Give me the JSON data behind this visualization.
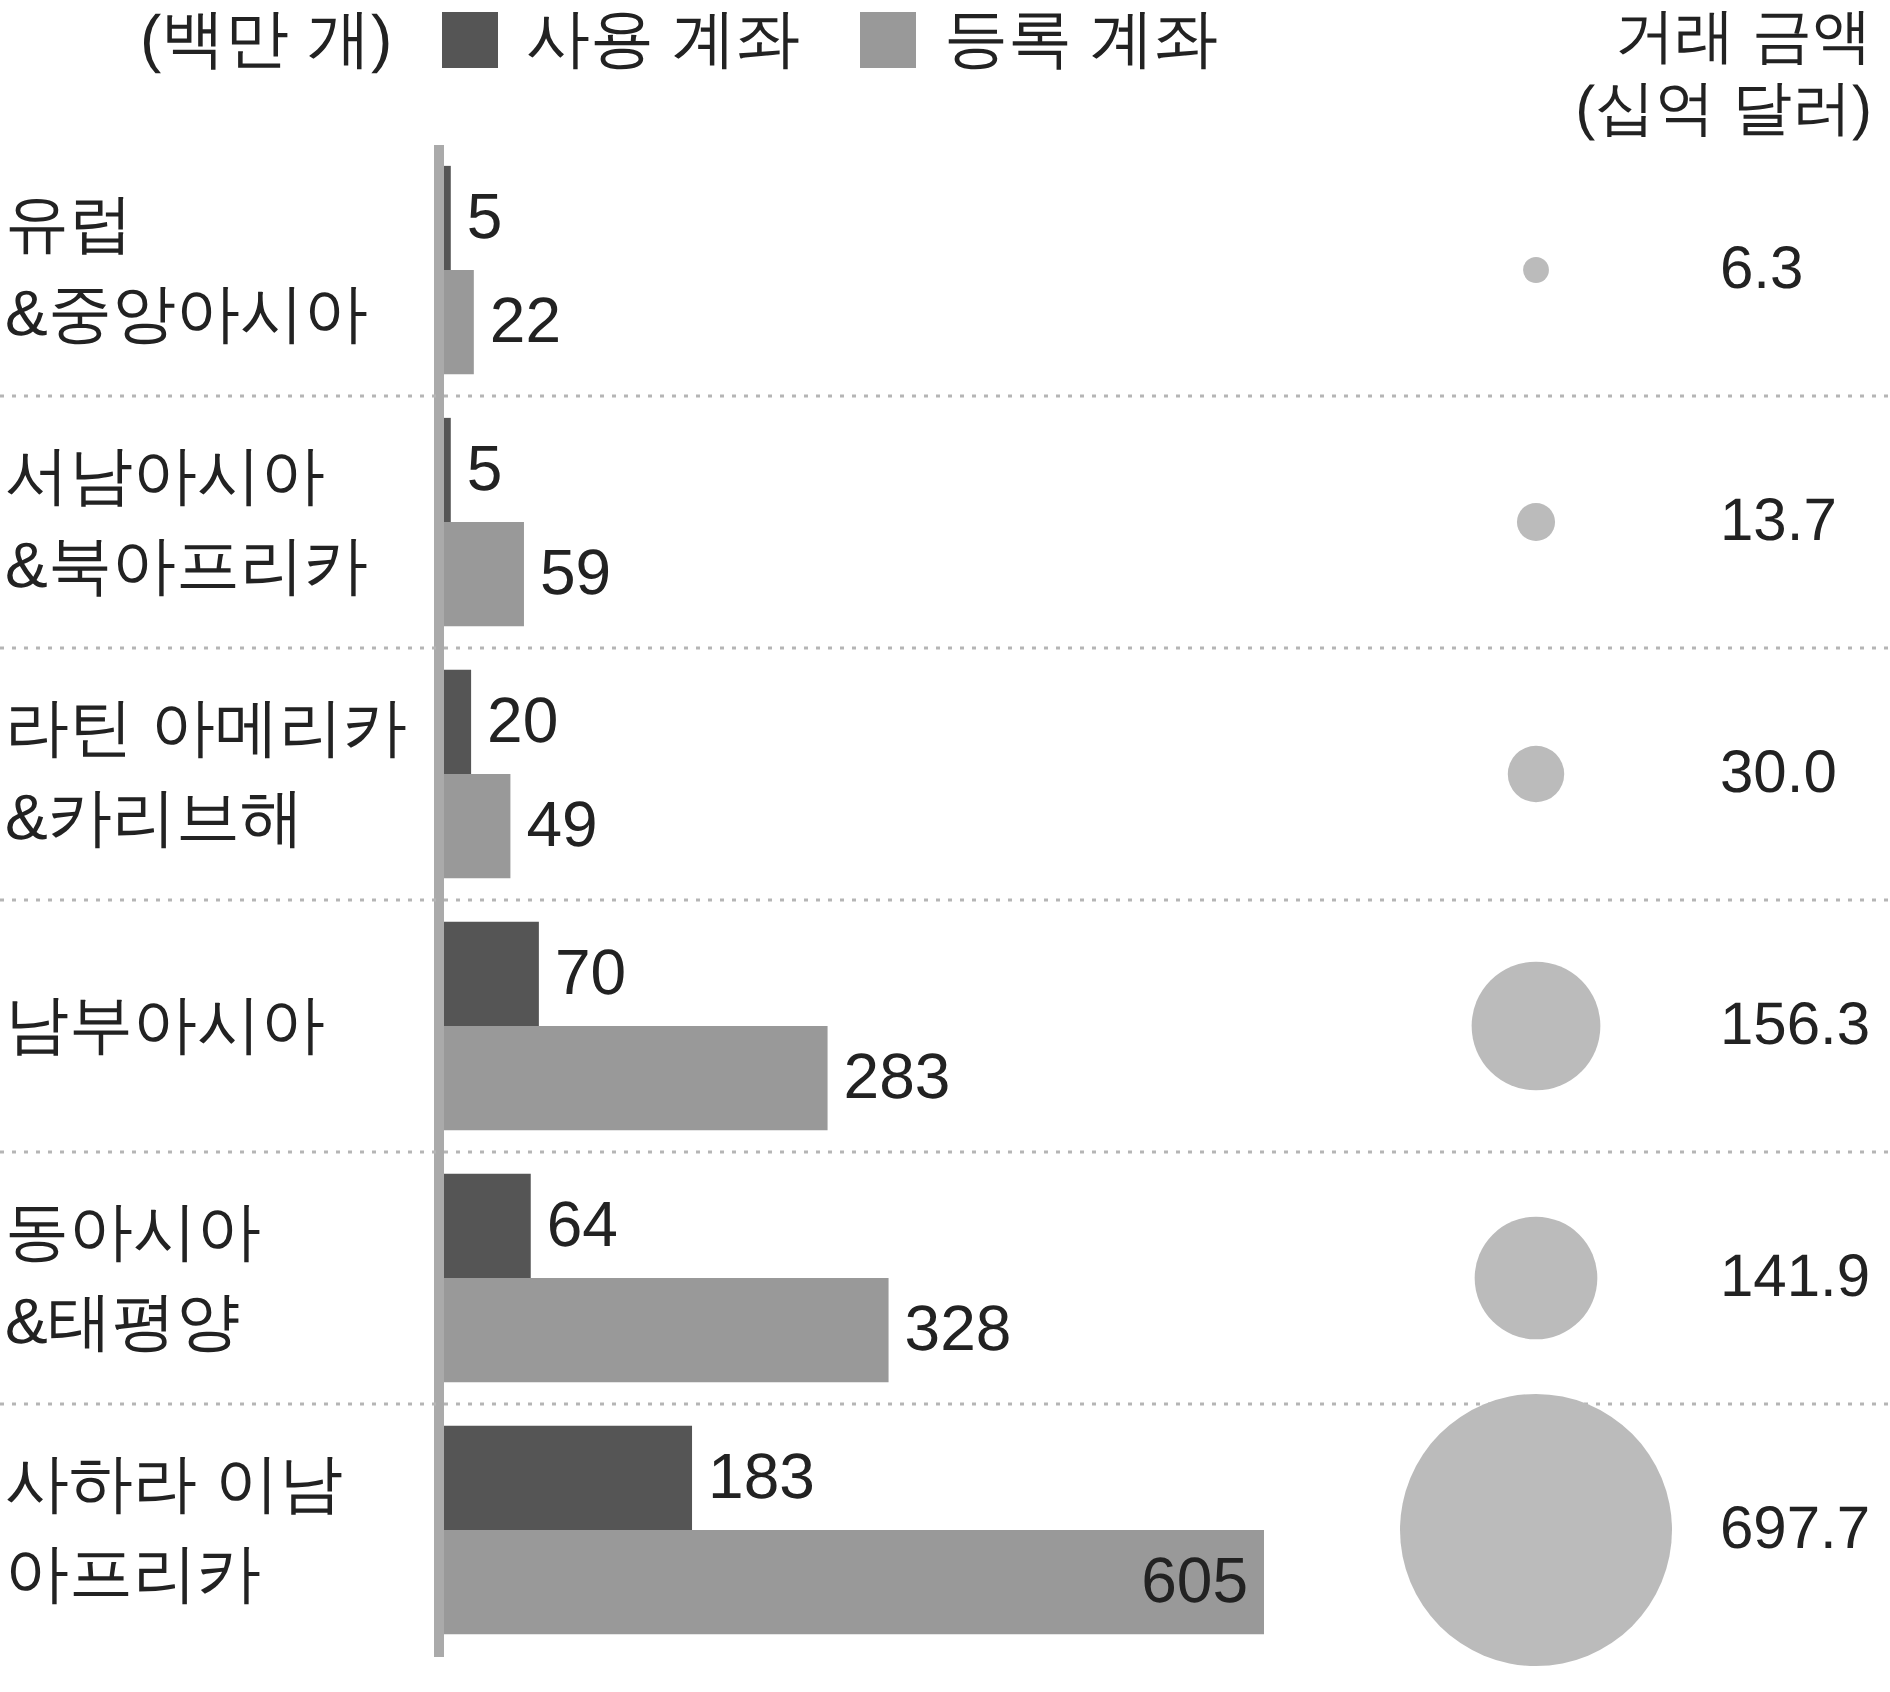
{
  "chart_data": [
    {
      "type": "bar",
      "orientation": "horizontal",
      "categories": [
        "유럽\n&중앙아시아",
        "서남아시아\n&북아프리카",
        "라틴 아메리카\n&카리브해",
        "남부아시아",
        "동아시아\n&태평양",
        "사하라 이남\n아프리카"
      ],
      "series": [
        {
          "name": "사용 계좌",
          "color": "#555555",
          "values": [
            5,
            5,
            20,
            70,
            64,
            183
          ]
        },
        {
          "name": "등록 계좌",
          "color": "#999999",
          "values": [
            22,
            59,
            49,
            283,
            328,
            605
          ]
        }
      ],
      "data_labels": true,
      "legend": "top left",
      "legend_title": "(백만 개)",
      "grid": "y",
      "tick_labels": "y"
    },
    {
      "type": "other",
      "title": "거래 금액\n(십억 달러)",
      "categories": [
        null,
        null,
        null,
        null,
        null,
        null
      ],
      "values": [
        6.3,
        13.7,
        30.0,
        156.3,
        141.9,
        697.7
      ],
      "value_labels": [
        "6.3",
        "13.7",
        "30.0",
        "156.3",
        "141.9",
        "697.7"
      ],
      "color": "#bbbbbb"
    }
  ]
}
